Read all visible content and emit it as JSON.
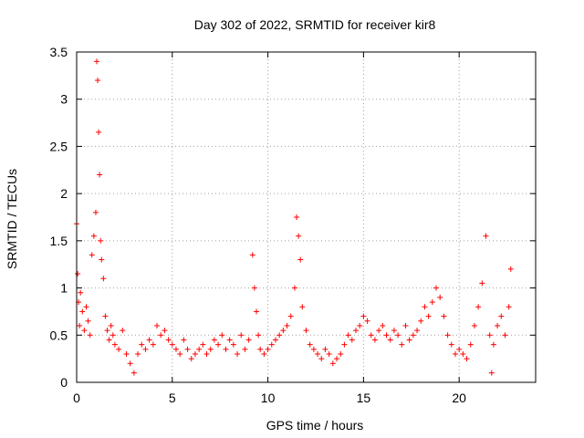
{
  "chart_data": {
    "type": "scatter",
    "title": "Day 302 of 2022, SRMTID for receiver kir8",
    "xlabel": "GPS time / hours",
    "ylabel": "SRMTID / TECUs",
    "xlim": [
      0,
      24
    ],
    "ylim": [
      0,
      3.5
    ],
    "xticks": [
      0,
      5,
      10,
      15,
      20
    ],
    "xtick_labels": [
      "0",
      "5",
      "10",
      "15",
      "20"
    ],
    "yticks": [
      0,
      0.5,
      1,
      1.5,
      2,
      2.5,
      3,
      3.5
    ],
    "ytick_labels": [
      "0",
      "0.5",
      "1",
      "1.5",
      "2",
      "2.5",
      "3",
      "3.5"
    ],
    "grid": true,
    "marker": "+",
    "series": [
      {
        "name": "SRMTID",
        "color": "#ff0000",
        "x": [
          0.0,
          0.05,
          0.1,
          0.15,
          0.2,
          0.3,
          0.4,
          0.5,
          0.6,
          0.7,
          0.8,
          0.9,
          1.0,
          1.05,
          1.1,
          1.15,
          1.2,
          1.25,
          1.3,
          1.4,
          1.5,
          1.6,
          1.7,
          1.8,
          1.9,
          2.0,
          2.2,
          2.4,
          2.6,
          2.8,
          3.0,
          3.2,
          3.4,
          3.6,
          3.8,
          4.0,
          4.2,
          4.4,
          4.6,
          4.8,
          5.0,
          5.2,
          5.4,
          5.6,
          5.8,
          6.0,
          6.2,
          6.4,
          6.6,
          6.8,
          7.0,
          7.2,
          7.4,
          7.6,
          7.8,
          8.0,
          8.2,
          8.4,
          8.6,
          8.8,
          9.0,
          9.2,
          9.3,
          9.4,
          9.5,
          9.6,
          9.8,
          10.0,
          10.2,
          10.4,
          10.6,
          10.8,
          11.0,
          11.2,
          11.4,
          11.5,
          11.6,
          11.7,
          11.8,
          12.0,
          12.2,
          12.4,
          12.6,
          12.8,
          13.0,
          13.2,
          13.4,
          13.6,
          13.8,
          14.0,
          14.2,
          14.4,
          14.6,
          14.8,
          15.0,
          15.2,
          15.4,
          15.6,
          15.8,
          16.0,
          16.2,
          16.4,
          16.6,
          16.8,
          17.0,
          17.2,
          17.4,
          17.6,
          17.8,
          18.0,
          18.2,
          18.4,
          18.6,
          18.8,
          19.0,
          19.2,
          19.4,
          19.6,
          19.8,
          20.0,
          20.2,
          20.4,
          20.6,
          20.8,
          21.0,
          21.2,
          21.4,
          21.6,
          21.7,
          21.8,
          22.0,
          22.2,
          22.4,
          22.6,
          22.7
        ],
        "y": [
          1.68,
          1.15,
          0.85,
          0.6,
          0.95,
          0.75,
          0.55,
          0.8,
          0.65,
          0.5,
          1.35,
          1.55,
          1.8,
          3.4,
          3.2,
          2.65,
          2.2,
          1.5,
          1.3,
          1.1,
          0.7,
          0.55,
          0.45,
          0.6,
          0.5,
          0.4,
          0.35,
          0.55,
          0.3,
          0.2,
          0.1,
          0.3,
          0.4,
          0.35,
          0.45,
          0.4,
          0.6,
          0.5,
          0.55,
          0.45,
          0.4,
          0.35,
          0.3,
          0.45,
          0.35,
          0.25,
          0.3,
          0.35,
          0.4,
          0.3,
          0.35,
          0.45,
          0.4,
          0.5,
          0.35,
          0.45,
          0.4,
          0.3,
          0.5,
          0.35,
          0.45,
          1.35,
          1.0,
          0.75,
          0.5,
          0.35,
          0.3,
          0.35,
          0.4,
          0.45,
          0.5,
          0.55,
          0.6,
          0.7,
          1.0,
          1.75,
          1.55,
          1.3,
          0.8,
          0.55,
          0.4,
          0.35,
          0.3,
          0.25,
          0.35,
          0.3,
          0.2,
          0.25,
          0.3,
          0.4,
          0.5,
          0.45,
          0.55,
          0.6,
          0.7,
          0.65,
          0.5,
          0.45,
          0.55,
          0.6,
          0.5,
          0.45,
          0.55,
          0.5,
          0.4,
          0.6,
          0.45,
          0.5,
          0.55,
          0.65,
          0.8,
          0.7,
          0.85,
          1.0,
          0.9,
          0.7,
          0.5,
          0.4,
          0.3,
          0.35,
          0.3,
          0.25,
          0.4,
          0.6,
          0.8,
          1.05,
          1.55,
          0.5,
          0.1,
          0.4,
          0.6,
          0.7,
          0.5,
          0.8,
          1.2
        ]
      }
    ]
  }
}
